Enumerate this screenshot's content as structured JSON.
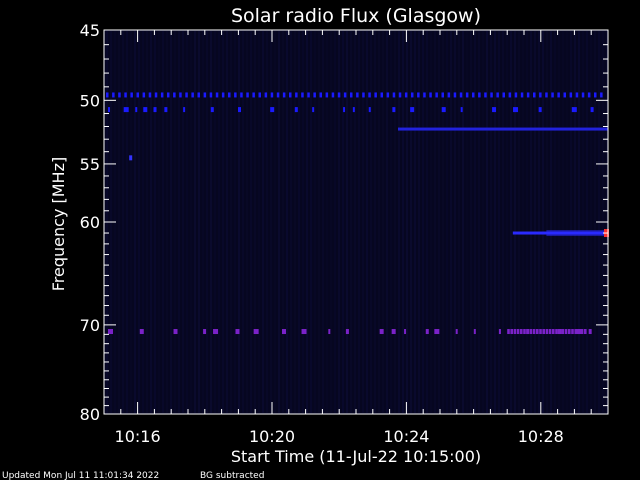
{
  "chart_data": {
    "type": "heatmap",
    "title": "Solar radio Flux (Glasgow)",
    "xlabel": "Start Time (11-Jul-22 10:15:00)",
    "ylabel": "Frequency [MHz]",
    "x_start": "10:15:00",
    "x_end": "10:30:00",
    "x_ticks": [
      {
        "minute": 16,
        "label": "10:16"
      },
      {
        "minute": 20,
        "label": "10:20"
      },
      {
        "minute": 24,
        "label": "10:24"
      },
      {
        "minute": 28,
        "label": "10:28"
      }
    ],
    "y_range_mhz": [
      45,
      80
    ],
    "y_ticks": [
      {
        "value": 45,
        "label": "45"
      },
      {
        "value": 50,
        "label": "50"
      },
      {
        "value": 55,
        "label": "55"
      },
      {
        "value": 60,
        "label": "60"
      },
      {
        "value": 70,
        "label": "70"
      },
      {
        "value": 80,
        "label": "80"
      }
    ],
    "background_color": "#060620",
    "emission_features": [
      {
        "freq_mhz": 49.6,
        "from": "10:15:00",
        "to": "10:30:00",
        "pattern": "dotted",
        "color": "#1a1aff"
      },
      {
        "freq_mhz": 50.7,
        "from": "10:15:00",
        "to": "10:30:00",
        "pattern": "sparse",
        "color": "#1a1aff"
      },
      {
        "freq_mhz": 52.2,
        "from": "10:23:45",
        "to": "10:30:00",
        "pattern": "solid",
        "color": "#2222dd"
      },
      {
        "freq_mhz": 54.5,
        "from": "10:15:45",
        "to": "10:15:50",
        "pattern": "spot",
        "color": "#3333ff"
      },
      {
        "freq_mhz": 61.0,
        "from": "10:27:10",
        "to": "10:30:00",
        "pattern": "solid",
        "color": "#2a2aff"
      },
      {
        "freq_mhz": 70.7,
        "from": "10:15:00",
        "to": "10:30:00",
        "pattern": "sparse",
        "color": "#7a22c8"
      }
    ],
    "hot_spot": {
      "freq_mhz": 61.0,
      "time": "10:30:00",
      "color": "#ff3030"
    }
  },
  "footer": {
    "updated": "Updated Mon Jul 11 11:01:34 2022",
    "note": "BG subtracted"
  }
}
